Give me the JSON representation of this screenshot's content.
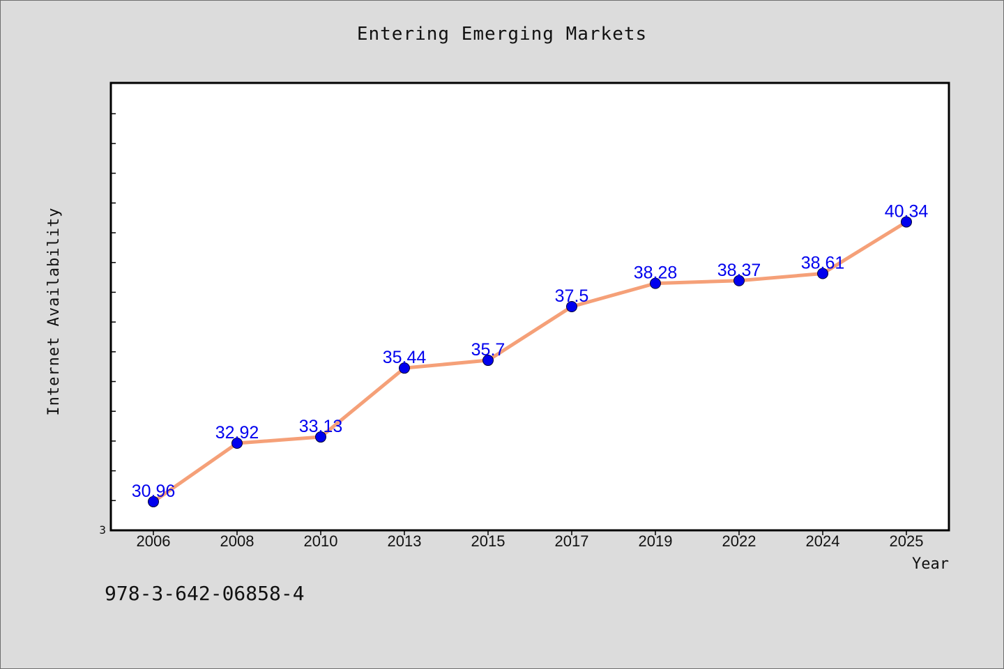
{
  "chart_data": {
    "type": "line",
    "title": "Entering Emerging Markets",
    "xlabel": "Year",
    "ylabel": "Internet Availability",
    "categories": [
      "2006",
      "2008",
      "2010",
      "2013",
      "2015",
      "2017",
      "2019",
      "2022",
      "2024",
      "2025"
    ],
    "series": [
      {
        "values": [
          30.96,
          32.92,
          33.13,
          35.44,
          35.7,
          37.5,
          38.28,
          38.37,
          38.61,
          40.34
        ],
        "labels": [
          "30.96",
          "32.92",
          "33.13",
          "35.44",
          "35.7",
          "37.5",
          "38.28",
          "38.37",
          "38.61",
          "40.34"
        ]
      }
    ],
    "y_tick_label": "3",
    "ylim": [
      30,
      45
    ],
    "grid": false,
    "legend": "none",
    "colors": {
      "line": "#f5a078",
      "marker": "#0000ee",
      "data_label": "#0000ee",
      "plot_background": "#ffffff",
      "figure_background": "#dcdcdc"
    }
  },
  "footer": {
    "text": "978-3-642-06858-4"
  }
}
